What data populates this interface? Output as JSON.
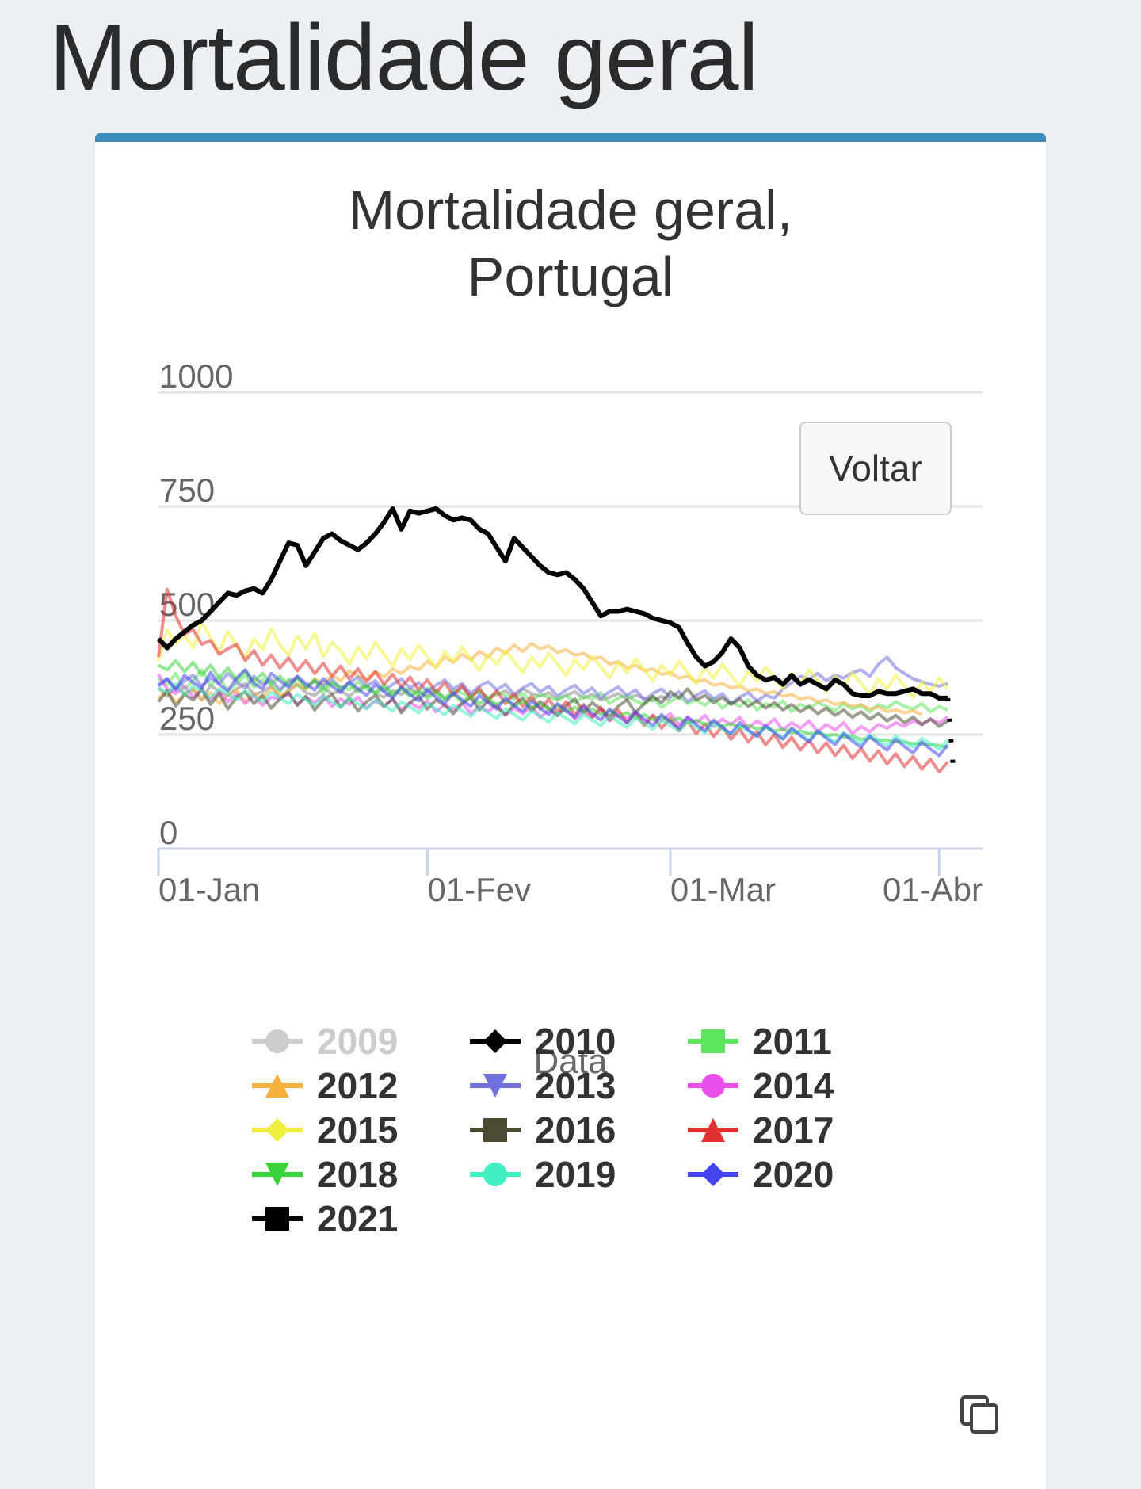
{
  "page": {
    "title": "Mortalidade geral"
  },
  "card": {
    "accent_color": "#3c8dbc"
  },
  "button": {
    "voltar_label": "Voltar"
  },
  "icons": {
    "copy": "copy-icon"
  },
  "chart_data": {
    "type": "line",
    "title_lines": [
      "Mortalidade geral,",
      "Portugal"
    ],
    "xlabel": "Data",
    "ylabel": "",
    "ylim": [
      0,
      1000
    ],
    "yticks": [
      0,
      250,
      500,
      750,
      1000
    ],
    "xlim": [
      "2021-01-01",
      "2021-04-06"
    ],
    "xticks": [
      {
        "date": "2021-01-01",
        "label": "01-Jan"
      },
      {
        "date": "2021-02-01",
        "label": "01-Fev"
      },
      {
        "date": "2021-03-01",
        "label": "01-Mar"
      },
      {
        "date": "2021-04-01",
        "label": "01-Abr"
      }
    ],
    "grid": true,
    "legend_position": "bottom",
    "series": [
      {
        "name": "2009",
        "color": "#cccccc",
        "marker": "circle",
        "hidden": true,
        "values": []
      },
      {
        "name": "2010",
        "color": "#000000",
        "marker": "diamond",
        "values": [
          352,
          334,
          356,
          340,
          348,
          326,
          358,
          344,
          336,
          350,
          362,
          338,
          344,
          356,
          330,
          348,
          360,
          342,
          336,
          352,
          340,
          346,
          334,
          350,
          358,
          340,
          332,
          346,
          338,
          350,
          342,
          336,
          348,
          330,
          340,
          352,
          336,
          344,
          330,
          338,
          346,
          332,
          350,
          340,
          334,
          342,
          328,
          336,
          344,
          330,
          338,
          326,
          332,
          340,
          328,
          336,
          330,
          324,
          334,
          326
        ]
      },
      {
        "name": "2011",
        "color": "#5ce65c",
        "marker": "square",
        "values": [
          372,
          360,
          384,
          350,
          368,
          392,
          358,
          376,
          346,
          362,
          380,
          354,
          370,
          360,
          344,
          372,
          358,
          350,
          368,
          340,
          362,
          356,
          348,
          366,
          350,
          342,
          360,
          338,
          354,
          346,
          336,
          352,
          344,
          330,
          348,
          340,
          334,
          346,
          330,
          342,
          336,
          328,
          340,
          324,
          338,
          332,
          326,
          336,
          320,
          334,
          328,
          342,
          318,
          330,
          336,
          324,
          316,
          332,
          310,
          322,
          334,
          318,
          326,
          314,
          330,
          308,
          322,
          312,
          326,
          304,
          318,
          310,
          324,
          300,
          316,
          308,
          320,
          312,
          302,
          318,
          306,
          314,
          300,
          316,
          308,
          322,
          312,
          306,
          318,
          300,
          312,
          304
        ]
      },
      {
        "name": "2012",
        "color": "#f7b03c",
        "marker": "triangle-up",
        "values": [
          330,
          346,
          320,
          338,
          352,
          326,
          342,
          318,
          336,
          348,
          322,
          340,
          330,
          352,
          336,
          344,
          360,
          350,
          372,
          362,
          380,
          368,
          390,
          378,
          372,
          388,
          376,
          394,
          384,
          400,
          392,
          410,
          398,
          420,
          408,
          426,
          414,
          432,
          420,
          440,
          428,
          446,
          432,
          450,
          438,
          444,
          430,
          436,
          424,
          428,
          416,
          420,
          404,
          410,
          396,
          402,
          390,
          394,
          382,
          386,
          374,
          378,
          366,
          370,
          358,
          362,
          352,
          356,
          346,
          350,
          340,
          344,
          334,
          338,
          328,
          332,
          322,
          326,
          316,
          320,
          312,
          316,
          306,
          310,
          300,
          304,
          298,
          302,
          294
        ]
      },
      {
        "name": "2013",
        "color": "#7070e0",
        "marker": "triangle-down",
        "values": [
          360,
          372,
          350,
          368,
          380,
          356,
          374,
          362,
          384,
          366,
          352,
          378,
          360,
          370,
          348,
          366,
          376,
          354,
          368,
          358,
          372,
          350,
          364,
          376,
          356,
          368,
          346,
          360,
          372,
          352,
          364,
          344,
          358,
          370,
          350,
          362,
          340,
          356,
          366,
          348,
          360,
          338,
          352,
          362,
          344,
          356,
          334,
          348,
          358,
          340,
          352,
          330,
          344,
          354,
          336,
          348,
          326,
          340,
          350,
          332,
          344,
          322,
          336,
          346,
          328,
          340,
          318,
          332,
          342,
          324,
          336,
          330,
          350,
          364,
          378,
          372,
          384,
          368,
          380,
          374,
          386,
          392,
          378,
          404,
          420,
          396,
          384,
          372,
          366,
          360,
          356,
          362
        ]
      },
      {
        "name": "2014",
        "color": "#e94fe9",
        "marker": "circle",
        "values": [
          382,
          350,
          340,
          356,
          332,
          348,
          326,
          344,
          322,
          340,
          318,
          336,
          314,
          332,
          328,
          340,
          316,
          332,
          320,
          336,
          312,
          328,
          316,
          332,
          308,
          324,
          312,
          328,
          304,
          320,
          308,
          324,
          300,
          316,
          304,
          320,
          296,
          312,
          300,
          316,
          292,
          308,
          296,
          312,
          288,
          304,
          292,
          308,
          284,
          300,
          288,
          304,
          280,
          296,
          284,
          300,
          276,
          292,
          280,
          296,
          272,
          288,
          276,
          292,
          268,
          284,
          272,
          288,
          264,
          280,
          268,
          284,
          260,
          276,
          264,
          280,
          256,
          272,
          260,
          276,
          252,
          268,
          256,
          272,
          264,
          276,
          268,
          280,
          272,
          284,
          276,
          288
        ]
      },
      {
        "name": "2015",
        "color": "#f0f040",
        "marker": "diamond",
        "values": [
          412,
          480,
          450,
          468,
          440,
          498,
          462,
          430,
          476,
          444,
          418,
          460,
          436,
          482,
          446,
          424,
          466,
          438,
          472,
          420,
          452,
          434,
          404,
          442,
          416,
          452,
          426,
          400,
          438,
          414,
          446,
          420,
          396,
          432,
          410,
          442,
          416,
          390,
          426,
          404,
          434,
          410,
          386,
          420,
          398,
          428,
          404,
          380,
          414,
          392,
          422,
          398,
          374,
          408,
          386,
          416,
          392,
          368,
          402,
          380,
          410,
          386,
          362,
          396,
          374,
          404,
          380,
          356,
          390,
          368,
          398,
          374,
          350,
          384,
          362,
          392,
          368,
          344,
          378,
          356,
          386,
          362,
          338,
          372,
          350,
          380,
          356,
          332,
          366,
          344,
          374,
          350
        ]
      },
      {
        "name": "2016",
        "color": "#4b4b33",
        "marker": "square",
        "values": [
          322,
          346,
          312,
          338,
          326,
          350,
          316,
          340,
          306,
          332,
          344,
          318,
          336,
          308,
          328,
          342,
          314,
          334,
          304,
          326,
          338,
          310,
          330,
          302,
          322,
          336,
          312,
          328,
          298,
          320,
          334,
          306,
          326,
          314,
          296,
          318,
          332,
          304,
          324,
          310,
          294,
          316,
          330,
          302,
          322,
          308,
          292,
          314,
          328,
          300,
          320,
          306,
          290,
          312,
          326,
          298,
          318,
          334,
          320,
          344,
          330,
          350,
          326,
          336,
          320,
          332,
          316,
          328,
          312,
          324,
          308,
          320,
          304,
          316,
          300,
          312,
          296,
          308,
          292,
          304,
          288,
          300,
          284,
          296,
          280,
          292,
          276,
          288,
          272,
          284,
          268,
          280
        ]
      },
      {
        "name": "2017",
        "color": "#e03030",
        "marker": "triangle-up",
        "values": [
          420,
          568,
          510,
          470,
          480,
          448,
          456,
          426,
          438,
          448,
          412,
          434,
          402,
          424,
          396,
          418,
          390,
          412,
          384,
          406,
          378,
          400,
          372,
          394,
          366,
          388,
          360,
          382,
          354,
          376,
          348,
          370,
          342,
          364,
          336,
          358,
          330,
          352,
          324,
          346,
          318,
          340,
          312,
          334,
          306,
          328,
          300,
          322,
          294,
          316,
          288,
          310,
          282,
          304,
          276,
          298,
          270,
          292,
          264,
          286,
          258,
          280,
          252,
          274,
          246,
          268,
          240,
          262,
          234,
          256,
          228,
          250,
          222,
          244,
          216,
          238,
          210,
          232,
          204,
          226,
          198,
          220,
          192,
          214,
          186,
          208,
          180,
          202,
          174,
          196,
          168,
          190
        ]
      },
      {
        "name": "2018",
        "color": "#3ad23a",
        "marker": "triangle-down",
        "values": [
          402,
          392,
          412,
          388,
          408,
          380,
          402,
          374,
          396,
          370,
          390,
          366,
          384,
          362,
          378,
          358,
          374,
          354,
          370,
          350,
          366,
          348,
          362,
          344,
          358,
          340,
          354,
          336,
          350,
          334,
          346,
          330,
          342,
          326,
          338,
          322,
          334,
          318,
          330,
          316,
          326,
          312,
          322,
          308,
          318,
          304,
          314,
          300,
          310,
          298,
          306,
          294,
          302,
          290,
          298,
          286,
          294,
          282,
          290,
          280,
          286,
          276,
          282,
          272,
          278,
          268,
          274,
          266,
          270,
          262,
          266,
          258,
          262,
          254,
          258,
          252,
          254,
          248,
          250,
          244,
          246,
          240,
          242,
          238,
          238,
          234,
          234,
          230,
          230,
          228,
          226,
          222
        ]
      },
      {
        "name": "2019",
        "color": "#40f0c0",
        "marker": "circle",
        "values": [
          352,
          342,
          362,
          336,
          356,
          346,
          330,
          350,
          340,
          326,
          346,
          334,
          322,
          342,
          330,
          318,
          338,
          326,
          314,
          334,
          322,
          310,
          330,
          318,
          306,
          326,
          314,
          302,
          322,
          310,
          298,
          318,
          306,
          294,
          314,
          302,
          290,
          310,
          298,
          286,
          306,
          294,
          282,
          302,
          290,
          278,
          298,
          286,
          274,
          294,
          282,
          270,
          290,
          278,
          266,
          286,
          274,
          262,
          282,
          270,
          258,
          278,
          266,
          254,
          274,
          262,
          250,
          270,
          258,
          246,
          266,
          254,
          242,
          262,
          250,
          238,
          258,
          246,
          234,
          254,
          242,
          230,
          250,
          238,
          226,
          246,
          234,
          222,
          242,
          230,
          218,
          238
        ]
      },
      {
        "name": "2020",
        "color": "#4444ee",
        "marker": "diamond",
        "values": [
          356,
          372,
          348,
          380,
          364,
          352,
          386,
          360,
          346,
          374,
          392,
          362,
          350,
          384,
          368,
          354,
          378,
          362,
          348,
          372,
          356,
          342,
          366,
          350,
          336,
          360,
          344,
          330,
          354,
          338,
          324,
          348,
          332,
          318,
          342,
          326,
          312,
          336,
          320,
          306,
          330,
          314,
          300,
          324,
          308,
          294,
          318,
          302,
          288,
          312,
          296,
          282,
          306,
          290,
          276,
          300,
          284,
          270,
          294,
          278,
          264,
          288,
          272,
          258,
          282,
          266,
          252,
          276,
          260,
          246,
          270,
          254,
          240,
          264,
          248,
          234,
          258,
          242,
          228,
          252,
          236,
          222,
          246,
          230,
          216,
          240,
          224,
          210,
          234,
          218,
          204,
          228
        ]
      },
      {
        "name": "2021",
        "color": "#000000",
        "marker": "square",
        "values": [
          460,
          440,
          460,
          475,
          490,
          500,
          520,
          540,
          560,
          555,
          565,
          570,
          560,
          590,
          630,
          670,
          665,
          620,
          650,
          680,
          690,
          675,
          665,
          655,
          670,
          690,
          715,
          745,
          700,
          740,
          735,
          740,
          745,
          730,
          720,
          725,
          720,
          700,
          690,
          660,
          630,
          680,
          660,
          640,
          620,
          605,
          600,
          605,
          590,
          570,
          540,
          510,
          520,
          520,
          525,
          520,
          515,
          505,
          500,
          495,
          485,
          450,
          420,
          400,
          410,
          430,
          460,
          440,
          400,
          380,
          370,
          375,
          360,
          380,
          360,
          370,
          360,
          350,
          370,
          360,
          340,
          335,
          335,
          345,
          340,
          340,
          345,
          350,
          340,
          340,
          330,
          330
        ]
      }
    ]
  }
}
